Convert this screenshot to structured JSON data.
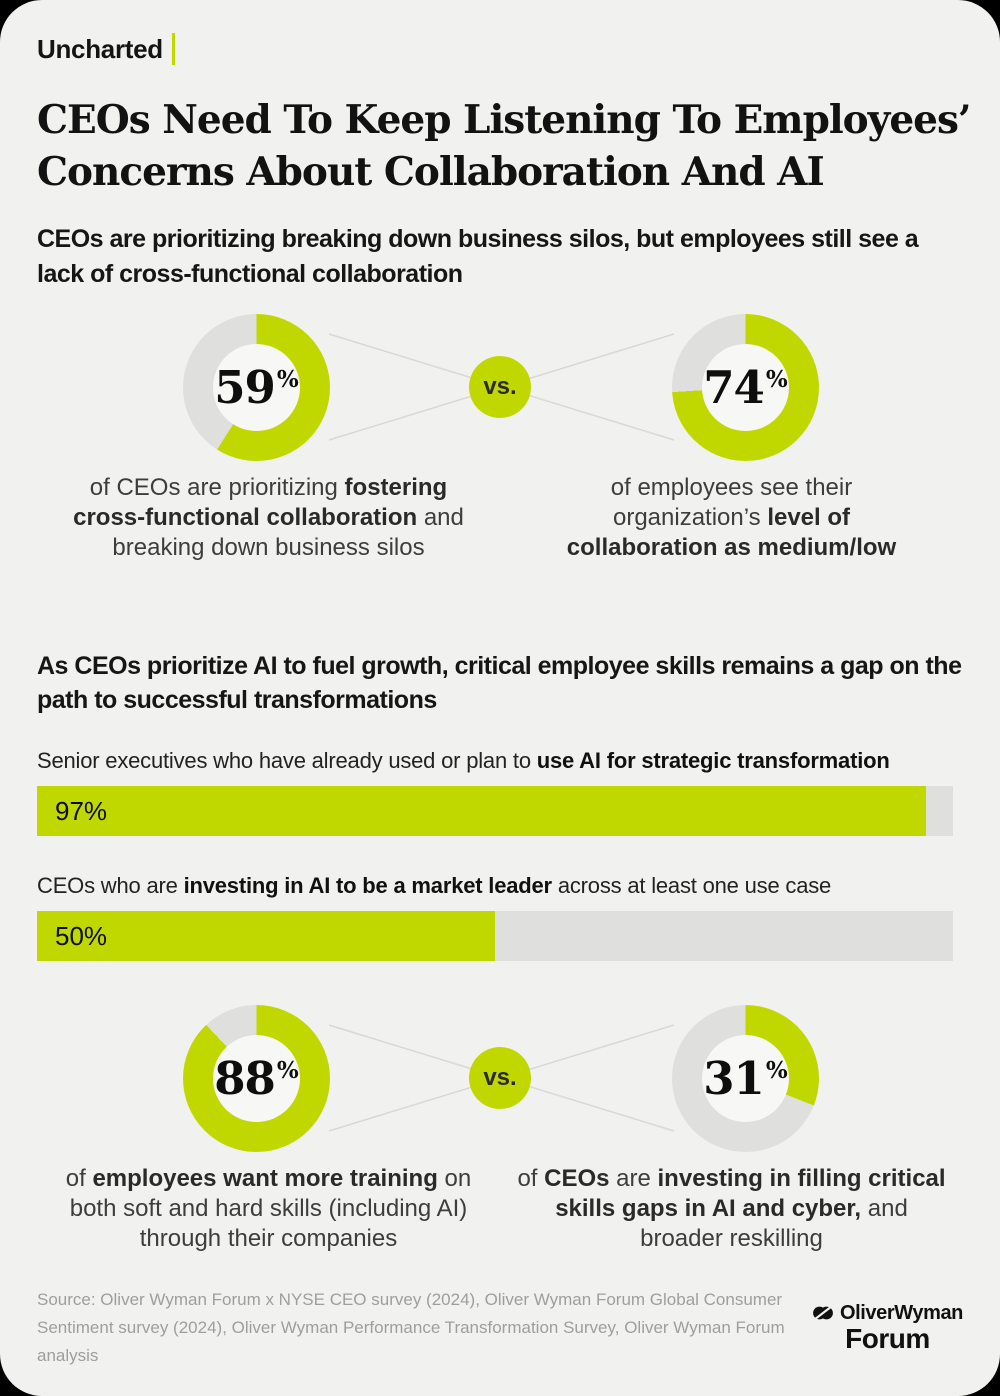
{
  "colors": {
    "accent": "#c0d800",
    "track": "#dfdfde",
    "background": "#f1f1ef",
    "ink": "#111111",
    "caption_text": "#3d3d3d",
    "muted": "#9e9e9e",
    "connector": "#d8d8d6",
    "donut_hole": "#f7f7f6"
  },
  "brand": {
    "tag": "Uncharted"
  },
  "title_lines": [
    "CEOs Need To Keep Listening To Employees’",
    "Concerns About Collaboration And AI"
  ],
  "intro": "CEOs are prioritizing breaking down business silos, but employees still see a lack of cross-functional collaboration",
  "vs_label": "vs.",
  "stats_row1": {
    "left": {
      "value": "59",
      "unit": "%",
      "percent": 59,
      "caption": [
        {
          "t": "of CEOs are prioritizing ",
          "b": false
        },
        {
          "t": "fostering cross-functional collaboration",
          "b": true
        },
        {
          "t": " and breaking down business silos",
          "b": false
        }
      ]
    },
    "right": {
      "value": "74",
      "unit": "%",
      "percent": 74,
      "caption": [
        {
          "t": "of employees see their organization’s ",
          "b": false
        },
        {
          "t": "level of collaboration as medium/low",
          "b": true
        }
      ]
    }
  },
  "section2_heading": "As CEOs prioritize AI to fuel growth, critical employee skills remains a gap on the path to successful transformations",
  "bars": [
    {
      "label": [
        {
          "t": "Senior executives who have already used or plan to ",
          "b": false
        },
        {
          "t": "use AI for strategic transformation",
          "b": true
        }
      ],
      "value_label": "97%",
      "percent": 97
    },
    {
      "label": [
        {
          "t": "CEOs who are ",
          "b": false
        },
        {
          "t": "investing in AI to be a market leader",
          "b": true
        },
        {
          "t": " across at least one use case",
          "b": false
        }
      ],
      "value_label": "50%",
      "percent": 50
    }
  ],
  "stats_row2": {
    "left": {
      "value": "88",
      "unit": "%",
      "percent": 88,
      "caption": [
        {
          "t": "of ",
          "b": false
        },
        {
          "t": "employees want more training",
          "b": true
        },
        {
          "t": " on both soft and hard skills (including AI) through their companies",
          "b": false
        }
      ]
    },
    "right": {
      "value": "31",
      "unit": "%",
      "percent": 31,
      "caption": [
        {
          "t": "of ",
          "b": false
        },
        {
          "t": "CEOs",
          "b": true
        },
        {
          "t": " are ",
          "b": false
        },
        {
          "t": "investing in filling critical skills gaps in AI and cyber,",
          "b": true
        },
        {
          "t": " and broader reskilling",
          "b": false
        }
      ]
    }
  },
  "footer": {
    "source": "Source: Oliver Wyman Forum x NYSE CEO survey (2024), Oliver Wyman Forum Global Consumer Sentiment survey (2024), Oliver Wyman Performance Transformation Survey, Oliver Wyman Forum analysis",
    "logo_word": "OliverWyman",
    "logo_forum": "Forum"
  },
  "chart_data": [
    {
      "type": "pie",
      "title": "of CEOs are prioritizing fostering cross-functional collaboration and breaking down business silos",
      "labels": [
        "CEOs prioritizing",
        "Other"
      ],
      "values": [
        59,
        41
      ],
      "value": 59,
      "unit": "%"
    },
    {
      "type": "pie",
      "title": "of employees see their organization’s level of collaboration as medium/low",
      "labels": [
        "Employees seeing medium/low collaboration",
        "Other"
      ],
      "values": [
        74,
        26
      ],
      "value": 74,
      "unit": "%"
    },
    {
      "type": "bar",
      "title": "Senior executives who have already used or plan to use AI for strategic transformation",
      "categories": [
        "Senior executives"
      ],
      "values": [
        97
      ],
      "xlim": [
        0,
        100
      ],
      "unit": "%"
    },
    {
      "type": "bar",
      "title": "CEOs who are investing in AI to be a market leader across at least one use case",
      "categories": [
        "CEOs"
      ],
      "values": [
        50
      ],
      "xlim": [
        0,
        100
      ],
      "unit": "%"
    },
    {
      "type": "pie",
      "title": "of employees want more training on both soft and hard skills (including AI) through their companies",
      "labels": [
        "Employees wanting more training",
        "Other"
      ],
      "values": [
        88,
        12
      ],
      "value": 88,
      "unit": "%"
    },
    {
      "type": "pie",
      "title": "of CEOs are investing in filling critical skills gaps in AI and cyber, and broader reskilling",
      "labels": [
        "CEOs investing in skills gaps",
        "Other"
      ],
      "values": [
        31,
        69
      ],
      "value": 31,
      "unit": "%"
    }
  ]
}
